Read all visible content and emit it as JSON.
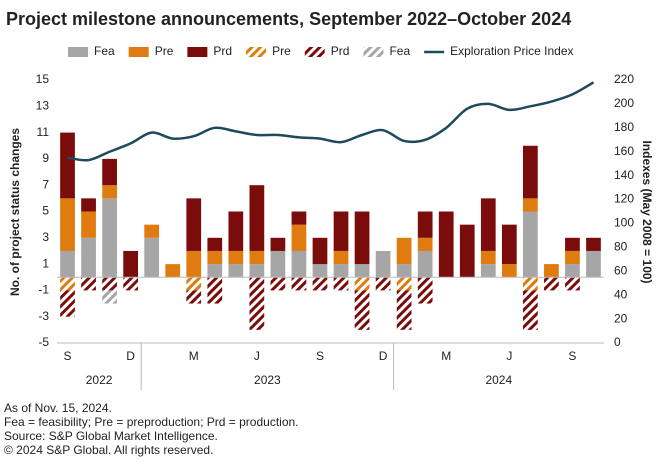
{
  "chart_data": {
    "type": "bar",
    "title": "Project milestone announcements, September 2022–October 2024",
    "y_label": "No. of project status changes",
    "y2_label": "Indexes (May 2008 = 100)",
    "categories": [
      "S",
      null,
      null,
      "D",
      null,
      null,
      "M",
      null,
      null,
      "J",
      null,
      null,
      "S",
      null,
      null,
      "D",
      null,
      null,
      "M",
      null,
      null,
      "J",
      null,
      null,
      "S",
      null
    ],
    "x_groups": [
      {
        "label": "2022",
        "months": 4
      },
      {
        "label": "2023",
        "months": 12
      },
      {
        "label": "2024",
        "months": 10
      }
    ],
    "ylim": [
      -5,
      15
    ],
    "yticks": [
      -5,
      -3,
      -1,
      1,
      3,
      5,
      7,
      9,
      11,
      13,
      15
    ],
    "y2lim": [
      0,
      220
    ],
    "y2ticks": [
      0,
      20,
      40,
      60,
      80,
      100,
      120,
      140,
      160,
      180,
      200,
      220
    ],
    "series": [
      {
        "name": "Fea",
        "color": "#a6a6a6",
        "hatched": false,
        "values": [
          2,
          3,
          6,
          0,
          3,
          0,
          0,
          1,
          1,
          1,
          2,
          2,
          1,
          1,
          1,
          2,
          1,
          2,
          0,
          0,
          1,
          0,
          5,
          0,
          1,
          2
        ]
      },
      {
        "name": "Pre",
        "color": "#e07b10",
        "hatched": false,
        "values": [
          4,
          2,
          1,
          0,
          1,
          1,
          2,
          1,
          1,
          1,
          0,
          2,
          0,
          1,
          0,
          0,
          2,
          1,
          0,
          0,
          1,
          1,
          1,
          1,
          1,
          0
        ]
      },
      {
        "name": "Prd",
        "color": "#7a0c0c",
        "hatched": false,
        "values": [
          5,
          1,
          2,
          2,
          0,
          0,
          4,
          1,
          3,
          5,
          1,
          1,
          2,
          3,
          4,
          0,
          0,
          2,
          5,
          4,
          4,
          3,
          4,
          0,
          1,
          1
        ]
      },
      {
        "name": "Pre",
        "color": "#e07b10",
        "hatched": true,
        "values": [
          -1,
          0,
          0,
          0,
          0,
          0,
          -1,
          0,
          0,
          0,
          0,
          0,
          0,
          0,
          -1,
          0,
          -1,
          0,
          0,
          0,
          0,
          0,
          -1,
          0,
          0,
          0
        ]
      },
      {
        "name": "Prd",
        "color": "#7a0c0c",
        "hatched": true,
        "values": [
          -2,
          -1,
          -1,
          -1,
          0,
          0,
          -1,
          -2,
          0,
          -4,
          -1,
          -1,
          -1,
          -1,
          -3,
          -1,
          -3,
          -2,
          0,
          0,
          0,
          0,
          -3,
          -1,
          -1,
          0
        ]
      },
      {
        "name": "Fea",
        "color": "#a6a6a6",
        "hatched": true,
        "values": [
          0,
          0,
          -1,
          0,
          0,
          0,
          0,
          0,
          0,
          0,
          0,
          0,
          0,
          0,
          0,
          0,
          0,
          0,
          0,
          0,
          0,
          0,
          0,
          0,
          0,
          0
        ]
      },
      {
        "name": "Exploration Price Index",
        "color": "#1d4a5c",
        "type": "line",
        "axis": "y2",
        "values": [
          155,
          153,
          160,
          167,
          176,
          171,
          173,
          180,
          177,
          174,
          174,
          172,
          171,
          168,
          174,
          178,
          169,
          170,
          180,
          196,
          200,
          195,
          198,
          202,
          208,
          218
        ]
      }
    ],
    "notes": [
      "As of Nov. 15, 2024.",
      "Fea = feasibility; Pre = preproduction; Prd = production.",
      "Source: S&P Global Market Intelligence.",
      "© 2024 S&P Global. All rights reserved."
    ]
  }
}
